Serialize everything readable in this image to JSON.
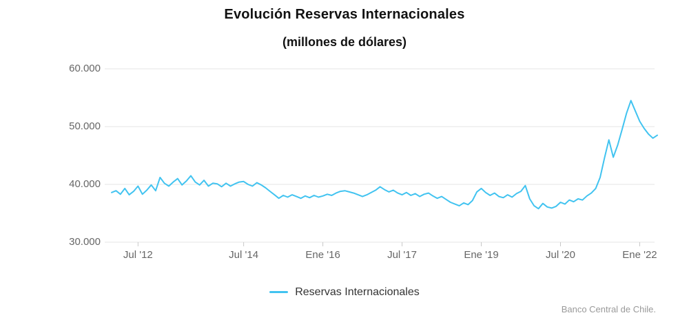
{
  "chart_data": {
    "type": "line",
    "title": "Evolución Reservas Internacionales",
    "subtitle": "(millones de dólares)",
    "xlabel": "",
    "ylabel": "",
    "ylim": [
      30000,
      60000
    ],
    "grid": "horizontal",
    "legend_position": "bottom",
    "credit": "Banco Central de Chile.",
    "yticks": [
      {
        "value": 30000,
        "label": "30.000"
      },
      {
        "value": 40000,
        "label": "40.000"
      },
      {
        "value": 50000,
        "label": "50.000"
      },
      {
        "value": 60000,
        "label": "60.000"
      }
    ],
    "xticks": [
      {
        "month_index": 6,
        "label": "Jul '12"
      },
      {
        "month_index": 30,
        "label": "Jul '14"
      },
      {
        "month_index": 48,
        "label": "Ene '16"
      },
      {
        "month_index": 66,
        "label": "Jul '17"
      },
      {
        "month_index": 84,
        "label": "Ene '19"
      },
      {
        "month_index": 102,
        "label": "Jul '20"
      },
      {
        "month_index": 120,
        "label": "Ene '22"
      }
    ],
    "x_start": "2012-01",
    "x_step": "month",
    "series": [
      {
        "name": "Reservas Internacionales",
        "color": "#41C3F0",
        "values": [
          38600,
          38900,
          38300,
          39300,
          38200,
          38800,
          39700,
          38300,
          39000,
          39900,
          38900,
          41200,
          40200,
          39700,
          40400,
          41000,
          39900,
          40600,
          41500,
          40400,
          39900,
          40700,
          39700,
          40200,
          40100,
          39600,
          40200,
          39700,
          40100,
          40400,
          40500,
          40000,
          39700,
          40300,
          39900,
          39400,
          38800,
          38200,
          37600,
          38100,
          37800,
          38200,
          37900,
          37600,
          38000,
          37700,
          38100,
          37800,
          38000,
          38300,
          38100,
          38500,
          38800,
          38900,
          38700,
          38500,
          38200,
          37900,
          38200,
          38600,
          39000,
          39600,
          39100,
          38700,
          39000,
          38500,
          38200,
          38600,
          38100,
          38400,
          37900,
          38300,
          38500,
          38000,
          37600,
          37900,
          37400,
          36900,
          36600,
          36300,
          36800,
          36500,
          37200,
          38700,
          39300,
          38600,
          38100,
          38500,
          37900,
          37700,
          38200,
          37800,
          38400,
          38800,
          39800,
          37500,
          36300,
          35800,
          36700,
          36100,
          35900,
          36200,
          36900,
          36600,
          37300,
          37000,
          37500,
          37300,
          38000,
          38500,
          39300,
          41200,
          44600,
          47700,
          44700,
          46800,
          49500,
          52300,
          54500,
          52700,
          50900,
          49700,
          48700,
          48000,
          48500
        ]
      }
    ],
    "colors": {
      "line": "#41C3F0",
      "gridline": "#e6e6e6",
      "axis_tick": "#c8c8c8",
      "tick_text": "#666666",
      "title_text": "#111111",
      "legend_text": "#333333",
      "credit_text": "#999999",
      "background": "#ffffff"
    }
  }
}
